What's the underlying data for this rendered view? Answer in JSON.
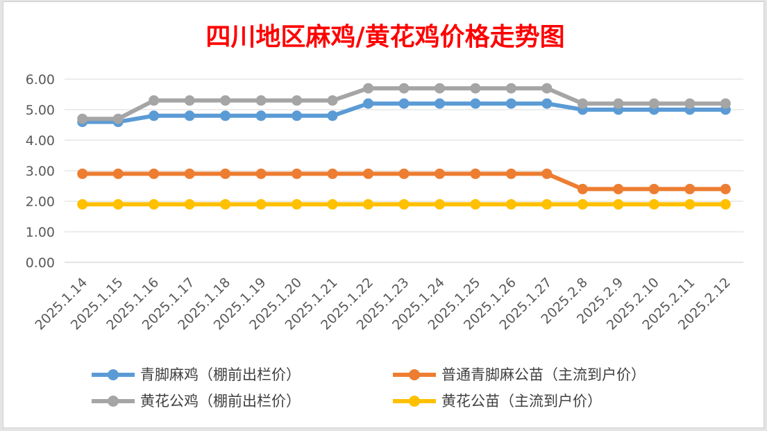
{
  "chart_data": {
    "type": "line",
    "title": "四川地区麻鸡/黄花鸡价格走势图",
    "title_color": "#ff0000",
    "xlabel": "",
    "ylabel": "",
    "ylim": [
      0,
      6
    ],
    "yticks": [
      "0.00",
      "1.00",
      "2.00",
      "3.00",
      "4.00",
      "5.00",
      "6.00"
    ],
    "grid": true,
    "legend_position": "bottom",
    "categories": [
      "2025.1.14",
      "2025.1.15",
      "2025.1.16",
      "2025.1.17",
      "2025.1.18",
      "2025.1.19",
      "2025.1.20",
      "2025.1.21",
      "2025.1.22",
      "2025.1.23",
      "2025.1.24",
      "2025.1.25",
      "2025.1.26",
      "2025.1.27",
      "2025.2.8",
      "2025.2.9",
      "2025.2.10",
      "2025.2.11",
      "2025.2.12"
    ],
    "series": [
      {
        "name": "青脚麻鸡（棚前出栏价）",
        "color": "#5b9bd5",
        "values": [
          4.6,
          4.6,
          4.8,
          4.8,
          4.8,
          4.8,
          4.8,
          4.8,
          5.2,
          5.2,
          5.2,
          5.2,
          5.2,
          5.2,
          5.0,
          5.0,
          5.0,
          5.0,
          5.0
        ]
      },
      {
        "name": "普通青脚麻公苗（主流到户价）",
        "color": "#ed7d31",
        "values": [
          2.9,
          2.9,
          2.9,
          2.9,
          2.9,
          2.9,
          2.9,
          2.9,
          2.9,
          2.9,
          2.9,
          2.9,
          2.9,
          2.9,
          2.4,
          2.4,
          2.4,
          2.4,
          2.4
        ]
      },
      {
        "name": "黄花公鸡（棚前出栏价）",
        "color": "#a5a5a5",
        "values": [
          4.7,
          4.7,
          5.3,
          5.3,
          5.3,
          5.3,
          5.3,
          5.3,
          5.7,
          5.7,
          5.7,
          5.7,
          5.7,
          5.7,
          5.2,
          5.2,
          5.2,
          5.2,
          5.2
        ]
      },
      {
        "name": "黄花公苗（主流到户价）",
        "color": "#ffc000",
        "values": [
          1.9,
          1.9,
          1.9,
          1.9,
          1.9,
          1.9,
          1.9,
          1.9,
          1.9,
          1.9,
          1.9,
          1.9,
          1.9,
          1.9,
          1.9,
          1.9,
          1.9,
          1.9,
          1.9
        ]
      }
    ]
  }
}
